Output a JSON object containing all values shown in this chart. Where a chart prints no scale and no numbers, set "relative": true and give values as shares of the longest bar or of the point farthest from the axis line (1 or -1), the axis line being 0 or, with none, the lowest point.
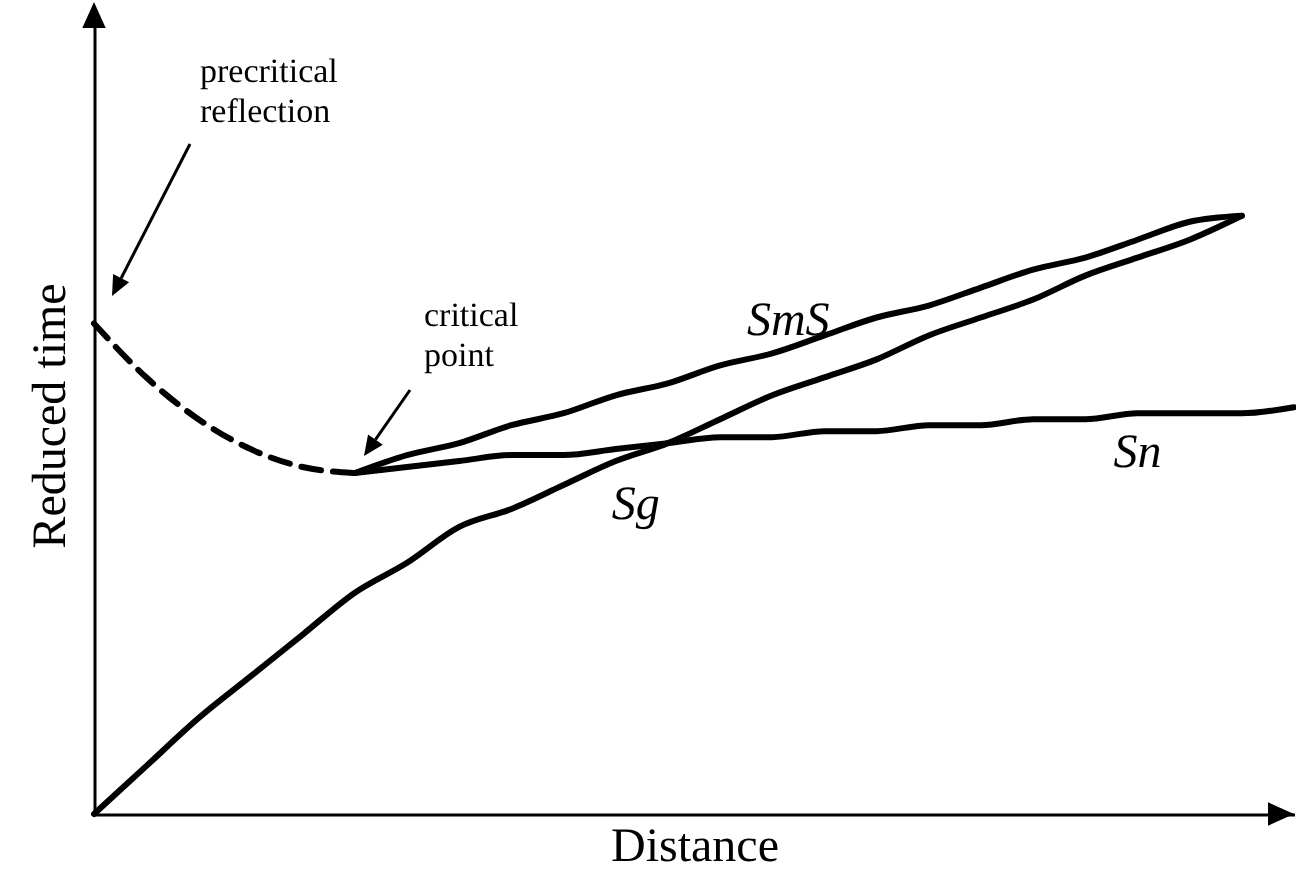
{
  "chart_data": {
    "type": "line",
    "relative": true,
    "xlabel": "Distance",
    "ylabel": "Reduced time",
    "categories": [
      null,
      null,
      null,
      null,
      null,
      null,
      null,
      null,
      null,
      null,
      null,
      null,
      null,
      null,
      null,
      null,
      null,
      null,
      null,
      null,
      null,
      null,
      null,
      null
    ],
    "series": [
      {
        "color": "#000000",
        "line_style": "dashed",
        "values": [
          0.82,
          0.73,
          0.66,
          0.61,
          0.58,
          0.57,
          null,
          null,
          null,
          null,
          null,
          null,
          null,
          null,
          null,
          null,
          null,
          null,
          null,
          null,
          null,
          null,
          null,
          null
        ]
      },
      {
        "name": "SmS",
        "color": "#000000",
        "values": [
          null,
          null,
          null,
          null,
          null,
          0.57,
          0.6,
          0.62,
          0.65,
          0.67,
          0.7,
          0.72,
          0.75,
          0.77,
          0.8,
          0.83,
          0.85,
          0.88,
          0.91,
          0.93,
          0.96,
          0.99,
          1.0,
          null
        ]
      },
      {
        "name": "Sn",
        "color": "#000000",
        "values": [
          null,
          null,
          null,
          null,
          null,
          0.57,
          0.58,
          0.59,
          0.6,
          0.6,
          0.61,
          0.62,
          0.63,
          0.63,
          0.64,
          0.64,
          0.65,
          0.65,
          0.66,
          0.66,
          0.67,
          0.67,
          0.67,
          0.68
        ]
      },
      {
        "name": "Sg",
        "color": "#000000",
        "values": [
          0,
          0.08,
          0.16,
          0.23,
          0.3,
          0.37,
          0.42,
          0.48,
          0.51,
          0.55,
          0.59,
          0.62,
          0.66,
          0.7,
          0.73,
          0.76,
          0.8,
          0.83,
          0.86,
          0.9,
          0.93,
          0.96,
          1.0,
          null
        ]
      }
    ],
    "annotations": [
      "precritical reflection",
      "critical point"
    ]
  }
}
